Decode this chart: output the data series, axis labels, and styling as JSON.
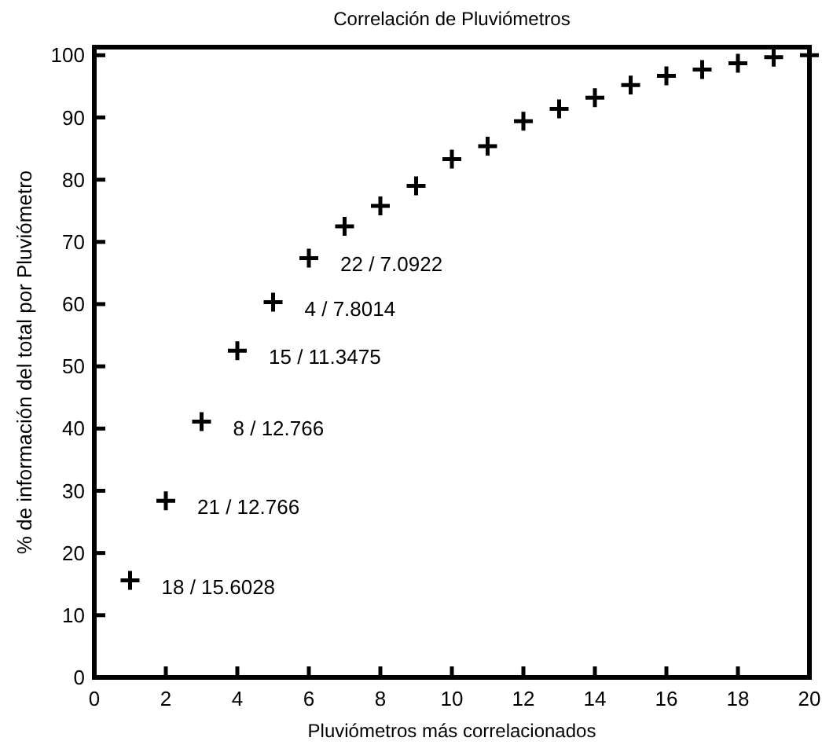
{
  "chart_data": {
    "type": "scatter",
    "title": "Correlación de Pluviómetros",
    "xlabel": "Pluviómetros más correlacionados",
    "ylabel": "% de información del total por Pluviómetro",
    "x": [
      1,
      2,
      3,
      4,
      5,
      6,
      7,
      8,
      9,
      10,
      11,
      12,
      13,
      14,
      15,
      16,
      17,
      18,
      19,
      20
    ],
    "series": [
      {
        "color": "#000000",
        "values": [
          15.6,
          28.4,
          41.1,
          52.5,
          60.3,
          67.4,
          72.5,
          75.8,
          79,
          83.3,
          85.4,
          89.4,
          91.4,
          93.2,
          95.2,
          96.7,
          97.7,
          98.7,
          99.7,
          100
        ]
      }
    ],
    "marker": "cross",
    "xlim": [
      0,
      20
    ],
    "xticks": [
      0,
      2,
      4,
      6,
      8,
      10,
      12,
      14,
      16,
      18,
      20
    ],
    "ylim": [
      0,
      101.3
    ],
    "yticks": [
      0,
      10,
      20,
      30,
      40,
      50,
      60,
      70,
      80,
      90,
      100
    ],
    "annotations": [
      {
        "text": "18 / 15.6028",
        "x": 1,
        "y": 15.6
      },
      {
        "text": "21 / 12.766",
        "x": 2,
        "y": 28.4
      },
      {
        "text": "8 / 12.766",
        "x": 3,
        "y": 41.1
      },
      {
        "text": "15 / 11.3475",
        "x": 4,
        "y": 52.5
      },
      {
        "text": "4 / 7.8014",
        "x": 5,
        "y": 60.3
      },
      {
        "text": "22 / 7.0922",
        "x": 6,
        "y": 67.4
      }
    ]
  }
}
